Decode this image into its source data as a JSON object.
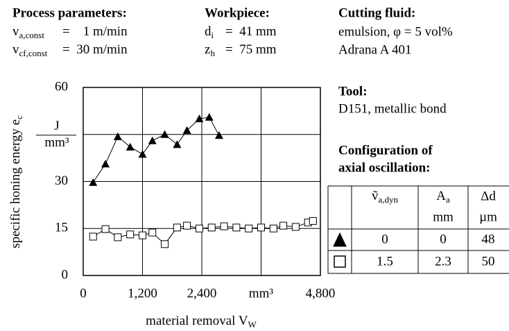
{
  "process": {
    "title": "Process parameters:",
    "lines": [
      {
        "sym": "v",
        "sub": "a,const",
        "val": "=    1 m/min"
      },
      {
        "sym": "v",
        "sub": "cf,const",
        "val": "=  30 m/min"
      }
    ]
  },
  "workpiece": {
    "title": "Workpiece:",
    "lines": [
      {
        "sym": "d",
        "sub": "i",
        "val": "=  41 mm"
      },
      {
        "sym": "z",
        "sub": "h",
        "val": "=  75 mm"
      }
    ]
  },
  "fluid": {
    "title": "Cutting fluid:",
    "lines": [
      "emulsion, φ = 5 vol%",
      "Adrana A 401"
    ]
  },
  "tool": {
    "title": "Tool:",
    "lines": [
      "D151, metallic bond"
    ]
  },
  "oscillation": {
    "title": [
      "Configuration of",
      "axial oscillation:"
    ],
    "table": {
      "header": [
        {
          "sym": "ṽ",
          "sub": "a,dyn"
        },
        {
          "sym": "A",
          "sub": "a"
        },
        {
          "sym": "Δd"
        }
      ],
      "units": [
        "mm",
        "µm"
      ],
      "rows": [
        [
          "0",
          "0",
          "48"
        ],
        [
          "1.5",
          "2.3",
          "50"
        ]
      ]
    }
  },
  "chart_data": {
    "type": "line",
    "ylabel": {
      "text": "specific honing energy e",
      "sub": "c"
    },
    "xlabel": {
      "text": "material removal V",
      "sub": "W"
    },
    "xlim": [
      0,
      4800
    ],
    "xticks": [
      0,
      {
        "value": 1200,
        "label": "1,200"
      },
      {
        "value": 2400,
        "label": "2,400"
      },
      {
        "value": 3600,
        "label": "mm³"
      },
      {
        "value": 4800,
        "label": "4,800"
      }
    ],
    "ylim": [
      0,
      60
    ],
    "yticks": [
      0,
      15,
      30,
      {
        "value": 45,
        "label": [
          "J",
          "mm³"
        ]
      },
      60
    ],
    "grid": true,
    "series": [
      {
        "marker": "triangle",
        "color": "#000000",
        "x": [
          200,
          450,
          700,
          950,
          1200,
          1400,
          1650,
          1900,
          2100,
          2350,
          2550,
          2750
        ],
        "values": [
          29.7,
          35.6,
          44.3,
          41,
          38.7,
          43,
          45,
          41.8,
          46.3,
          50,
          50.5,
          44.7
        ]
      },
      {
        "marker": "square",
        "color": "#000000",
        "x": [
          200,
          450,
          700,
          950,
          1200,
          1400,
          1650,
          1900,
          2100,
          2350,
          2600,
          2850,
          3100,
          3350,
          3600,
          3850,
          4050,
          4300,
          4550,
          4650
        ],
        "values": [
          12.4,
          14.8,
          12.2,
          13.1,
          12.8,
          13.7,
          10,
          15.3,
          15.9,
          15,
          15.3,
          15.7,
          15.3,
          15,
          15.3,
          15,
          15.9,
          15.5,
          16.9,
          17.4
        ]
      }
    ]
  }
}
